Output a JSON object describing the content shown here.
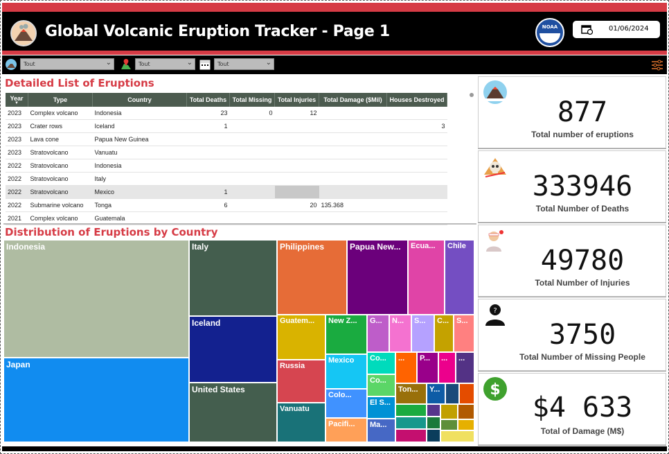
{
  "header": {
    "title": "Global Volcanic Eruption Tracker - Page 1",
    "date": "01/06/2024",
    "noaa_label": "NOAA"
  },
  "filters": [
    {
      "icon": "volcano-globe-icon",
      "value": "Tout"
    },
    {
      "icon": "map-pin-icon",
      "value": "Tout"
    },
    {
      "icon": "calendar-icon",
      "value": "Tout"
    }
  ],
  "table": {
    "title": "Detailed List of Eruptions",
    "columns": [
      "Year",
      "Type",
      "Country",
      "Total Deaths",
      "Total Missing",
      "Total Injuries",
      "Total Damage ($Mil)",
      "Houses Destroyed"
    ],
    "rows": [
      [
        "2023",
        "Complex volcano",
        "Indonesia",
        "23",
        "0",
        "12",
        "",
        ""
      ],
      [
        "2023",
        "Crater rows",
        "Iceland",
        "1",
        "",
        "",
        "",
        "3"
      ],
      [
        "2023",
        "Lava cone",
        "Papua New Guinea",
        "",
        "",
        "",
        "",
        ""
      ],
      [
        "2023",
        "Stratovolcano",
        "Vanuatu",
        "",
        "",
        "",
        "",
        ""
      ],
      [
        "2022",
        "Stratovolcano",
        "Indonesia",
        "",
        "",
        "",
        "",
        ""
      ],
      [
        "2022",
        "Stratovolcano",
        "Italy",
        "",
        "",
        "",
        "",
        ""
      ],
      [
        "2022",
        "Stratovolcano",
        "Mexico",
        "1",
        "",
        "",
        "",
        ""
      ],
      [
        "2022",
        "Submarine volcano",
        "Tonga",
        "6",
        "",
        "20",
        "135.368",
        ""
      ],
      [
        "2021",
        "Complex volcano",
        "Guatemala",
        "",
        "",
        "",
        "",
        ""
      ]
    ]
  },
  "treemap": {
    "title": "Distribution of Eruptions by Country",
    "tiles": [
      {
        "label": "Indonesia",
        "color": "#afbca2"
      },
      {
        "label": "Japan",
        "color": "#118cf0"
      },
      {
        "label": "Italy",
        "color": "#445e4e"
      },
      {
        "label": "Iceland",
        "color": "#13218f"
      },
      {
        "label": "United States",
        "color": "#445e4e"
      },
      {
        "label": "Philippines",
        "color": "#e66c37"
      },
      {
        "label": "Papua New...",
        "color": "#6b007b"
      },
      {
        "label": "Ecua...",
        "color": "#e044a7"
      },
      {
        "label": "Chile",
        "color": "#744ec2"
      },
      {
        "label": "Guatem...",
        "color": "#d9b300"
      },
      {
        "label": "Russia",
        "color": "#d64550"
      },
      {
        "label": "Vanuatu",
        "color": "#197278"
      },
      {
        "label": "New Z...",
        "color": "#1aab40"
      },
      {
        "label": "Mexico",
        "color": "#15c6f4"
      },
      {
        "label": "Colo...",
        "color": "#4092ff"
      },
      {
        "label": "Pacifi...",
        "color": "#ffa058"
      },
      {
        "label": "G...",
        "color": "#be5dc9"
      },
      {
        "label": "N...",
        "color": "#f472d0"
      },
      {
        "label": "S...",
        "color": "#b5a1ff"
      },
      {
        "label": "C...",
        "color": "#c4a200"
      },
      {
        "label": "S...",
        "color": "#ff8080"
      },
      {
        "label": "Co...",
        "color": "#00dbbc"
      },
      {
        "label": "Co...",
        "color": "#5bd667"
      },
      {
        "label": "El S...",
        "color": "#0091d5"
      },
      {
        "label": "Ma...",
        "color": "#4668c5"
      },
      {
        "label": "...",
        "color": "#ff6300"
      },
      {
        "label": "P...",
        "color": "#99008a"
      },
      {
        "label": "...",
        "color": "#ec008c"
      },
      {
        "label": "...",
        "color": "#533285"
      },
      {
        "label": "Ton...",
        "color": "#99700a"
      },
      {
        "label": "Y...",
        "color": "#0e5ca6"
      },
      {
        "label": "",
        "color": "#1a4a7a"
      },
      {
        "label": "",
        "color": "#e44c00"
      },
      {
        "label": "",
        "color": "#1aab40"
      },
      {
        "label": "",
        "color": "#17988c"
      },
      {
        "label": "",
        "color": "#c40f6f"
      },
      {
        "label": "",
        "color": "#57358c"
      },
      {
        "label": "",
        "color": "#1b7a3b"
      },
      {
        "label": "",
        "color": "#0b3d5c"
      },
      {
        "label": "",
        "color": "#c1a000"
      },
      {
        "label": "",
        "color": "#b15a00"
      }
    ]
  },
  "kpis": [
    {
      "icon": "volcano-icon",
      "value": "877",
      "label": "Total number of eruptions"
    },
    {
      "icon": "skull-icon",
      "value": "333946",
      "label": "Total Number of Deaths"
    },
    {
      "icon": "injured-person-icon",
      "value": "49780",
      "label": "Total Number of Injuries"
    },
    {
      "icon": "missing-person-icon",
      "value": "3750",
      "label": "Total Number of Missing People"
    },
    {
      "icon": "dollar-icon",
      "value": "$4 633",
      "label": "Total of Damage (M$)"
    }
  ]
}
